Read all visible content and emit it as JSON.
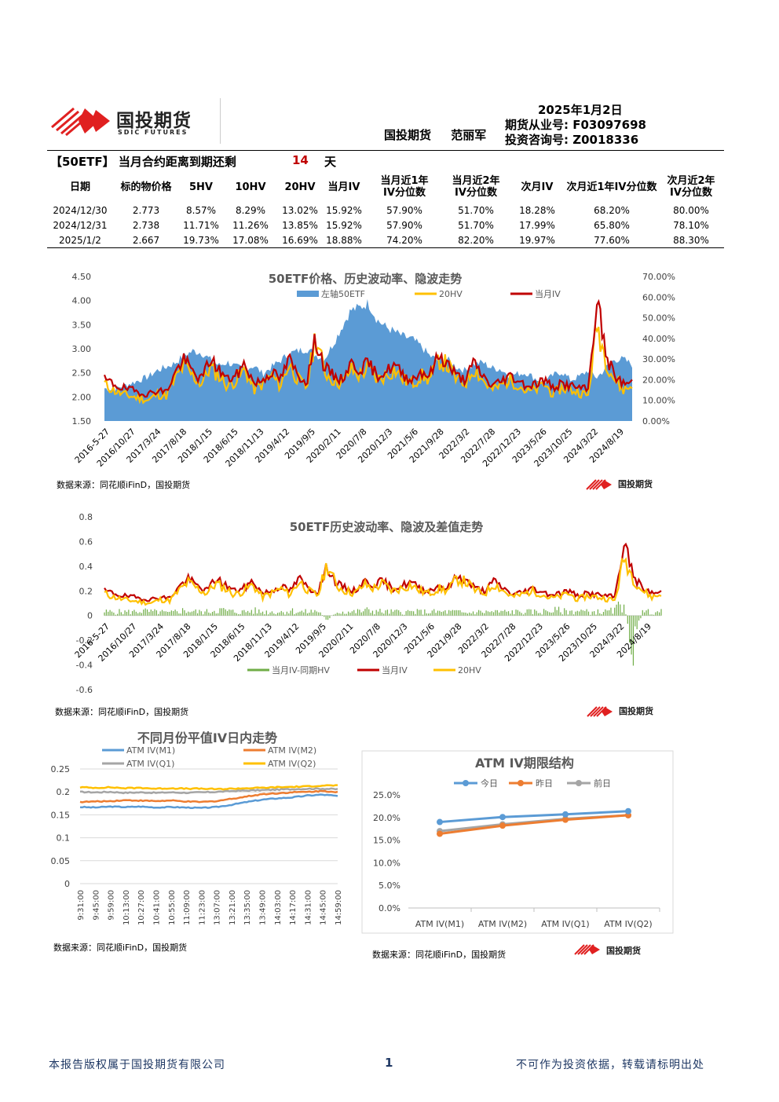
{
  "header": {
    "logo_cn": "国投期货",
    "logo_en": "SDIC FUTURES",
    "date": "2025年1月2日",
    "company": "国投期货",
    "analyst": "范丽军",
    "futures_license": "期货从业号: F03097698",
    "advisory_license": "投资咨询号: Z0018336"
  },
  "expiry": {
    "label": "【50ETF】 当月合约距离到期还剩",
    "days": "14",
    "unit": "天"
  },
  "table": {
    "headers": [
      "日期",
      "标的物价格",
      "5HV",
      "10HV",
      "20HV",
      "当月IV",
      "当月近1年IV分位数",
      "当月近2年IV分位数",
      "次月IV",
      "次月近1年IV分位数",
      "次月近2年IV分位数"
    ],
    "rows": [
      [
        "2024/12/30",
        "2.773",
        "8.57%",
        "8.29%",
        "13.02%",
        "15.92%",
        "57.90%",
        "51.70%",
        "18.28%",
        "68.20%",
        "80.00%"
      ],
      [
        "2024/12/31",
        "2.738",
        "11.71%",
        "11.26%",
        "13.85%",
        "15.92%",
        "57.90%",
        "51.70%",
        "17.99%",
        "65.80%",
        "78.10%"
      ],
      [
        "2025/1/2",
        "2.667",
        "19.73%",
        "17.08%",
        "16.69%",
        "18.88%",
        "74.20%",
        "82.20%",
        "19.97%",
        "77.60%",
        "88.30%"
      ]
    ]
  },
  "source_note": "数据来源：同花顺iFinD，国投期货",
  "footer": {
    "left": "本报告版权属于国投期货有限公司",
    "page": "1",
    "right": "不可作为投资依据，转载请标明出处"
  },
  "colors": {
    "etf": "#5b9bd5",
    "hv20": "#ffc000",
    "iv": "#c00000",
    "diff": "#70ad47",
    "m1": "#5b9bd5",
    "m2": "#ed7d31",
    "q1": "#a5a5a5",
    "q2": "#ffc000",
    "logo_red": "#e02020"
  },
  "chart_data": [
    {
      "type": "area",
      "title": "50ETF价格、历史波动率、隐波走势",
      "x_ticks": [
        "2016-5-27",
        "2016/10/27",
        "2017/3/24",
        "2017/8/18",
        "2018/1/15",
        "2018/6/15",
        "2018/11/13",
        "2019/4/12",
        "2019/9/5",
        "2020/2/11",
        "2020/7/8",
        "2020/12/3",
        "2021/5/6",
        "2021/9/28",
        "2022/3/2",
        "2022/7/28",
        "2022/12/23",
        "2023/5/26",
        "2023/10/25",
        "2024/3/22",
        "2024/8/19"
      ],
      "y_left_ticks": [
        "1.50",
        "2.00",
        "2.50",
        "3.00",
        "3.50",
        "4.00",
        "4.50"
      ],
      "y_right_ticks": [
        "0.00%",
        "10.00%",
        "20.00%",
        "30.00%",
        "40.00%",
        "50.00%",
        "60.00%",
        "70.00%"
      ],
      "ylim_left": [
        1.5,
        4.5
      ],
      "ylim_right": [
        0,
        0.7
      ],
      "legend": "top",
      "series": [
        {
          "name": "左轴50ETF",
          "axis": "left",
          "kind": "area",
          "values": [
            2.18,
            2.15,
            2.22,
            2.28,
            2.35,
            2.42,
            2.55,
            2.62,
            2.7,
            2.85,
            2.95,
            2.92,
            2.78,
            2.65,
            2.72,
            2.62,
            2.58,
            2.65,
            2.48,
            2.62,
            2.75,
            2.9,
            2.95,
            3.0,
            2.88,
            2.78,
            3.1,
            3.45,
            3.8,
            3.85,
            3.95,
            3.6,
            3.45,
            3.35,
            3.25,
            3.2,
            3.05,
            2.85,
            2.75,
            2.78,
            2.62,
            2.55,
            2.68,
            2.72,
            2.6,
            2.58,
            2.45,
            2.48,
            2.5,
            2.38,
            2.3,
            2.45,
            2.52,
            2.35,
            2.42,
            2.55,
            2.4,
            2.6,
            2.78,
            2.78,
            2.67
          ]
        },
        {
          "name": "20HV",
          "axis": "right",
          "kind": "line",
          "values": [
            0.18,
            0.15,
            0.13,
            0.12,
            0.11,
            0.1,
            0.13,
            0.12,
            0.2,
            0.27,
            0.22,
            0.18,
            0.26,
            0.22,
            0.17,
            0.2,
            0.25,
            0.15,
            0.18,
            0.22,
            0.17,
            0.28,
            0.2,
            0.16,
            0.42,
            0.24,
            0.2,
            0.18,
            0.25,
            0.22,
            0.26,
            0.2,
            0.22,
            0.25,
            0.2,
            0.18,
            0.22,
            0.2,
            0.3,
            0.27,
            0.2,
            0.18,
            0.26,
            0.2,
            0.15,
            0.17,
            0.2,
            0.18,
            0.14,
            0.15,
            0.18,
            0.13,
            0.16,
            0.15,
            0.14,
            0.12,
            0.47,
            0.3,
            0.2,
            0.15,
            0.17
          ]
        },
        {
          "name": "当月IV",
          "axis": "right",
          "kind": "line",
          "values": [
            0.2,
            0.18,
            0.16,
            0.15,
            0.14,
            0.13,
            0.15,
            0.14,
            0.23,
            0.3,
            0.24,
            0.2,
            0.3,
            0.25,
            0.2,
            0.22,
            0.28,
            0.18,
            0.2,
            0.24,
            0.2,
            0.3,
            0.22,
            0.19,
            0.4,
            0.26,
            0.22,
            0.2,
            0.28,
            0.25,
            0.28,
            0.22,
            0.24,
            0.27,
            0.22,
            0.2,
            0.24,
            0.22,
            0.32,
            0.28,
            0.22,
            0.2,
            0.28,
            0.22,
            0.17,
            0.19,
            0.22,
            0.2,
            0.17,
            0.18,
            0.2,
            0.16,
            0.18,
            0.17,
            0.16,
            0.15,
            0.6,
            0.32,
            0.22,
            0.18,
            0.19
          ]
        }
      ]
    },
    {
      "type": "line",
      "title": "50ETF历史波动率、隐波及差值走势",
      "x_ticks": [
        "2016-5-27",
        "2016/10/27",
        "2017/3/24",
        "2017/8/18",
        "2018/1/15",
        "2018/6/15",
        "2018/11/13",
        "2019/4/12",
        "2019/9/5",
        "2020/2/11",
        "2020/7/8",
        "2020/12/3",
        "2021/5/6",
        "2021/9/28",
        "2022/3/2",
        "2022/7/28",
        "2022/12/23",
        "2023/5/26",
        "2023/10/25",
        "2024/3/22",
        "2024/8/19"
      ],
      "y_ticks": [
        "-0.6",
        "-0.4",
        "-0.2",
        "0",
        "0.2",
        "0.4",
        "0.6",
        "0.8"
      ],
      "ylim": [
        -0.6,
        0.8
      ],
      "legend": "bottom",
      "series": [
        {
          "name": "当月IV-同期HV",
          "kind": "bar",
          "values": [
            0.03,
            0.03,
            0.03,
            0.03,
            0.04,
            0.03,
            0.03,
            0.02,
            0.04,
            0.04,
            0.03,
            0.03,
            0.05,
            0.04,
            0.03,
            0.03,
            0.04,
            0.03,
            0.03,
            0.03,
            0.04,
            0.03,
            0.03,
            0.04,
            -0.03,
            0.03,
            0.03,
            0.03,
            0.04,
            0.04,
            0.03,
            0.03,
            0.03,
            0.03,
            0.03,
            0.03,
            0.03,
            0.03,
            0.03,
            0.02,
            0.03,
            0.03,
            0.03,
            0.03,
            0.03,
            0.03,
            0.03,
            0.03,
            0.04,
            0.04,
            0.03,
            0.04,
            0.03,
            0.03,
            0.03,
            0.04,
            0.12,
            -0.3,
            0.03,
            0.03,
            0.03
          ]
        },
        {
          "name": "当月IV",
          "kind": "line",
          "values": [
            0.2,
            0.18,
            0.16,
            0.15,
            0.14,
            0.13,
            0.15,
            0.14,
            0.23,
            0.3,
            0.24,
            0.2,
            0.3,
            0.25,
            0.2,
            0.22,
            0.28,
            0.18,
            0.2,
            0.24,
            0.2,
            0.3,
            0.22,
            0.19,
            0.4,
            0.26,
            0.22,
            0.2,
            0.28,
            0.25,
            0.28,
            0.22,
            0.24,
            0.27,
            0.22,
            0.2,
            0.24,
            0.22,
            0.32,
            0.28,
            0.22,
            0.2,
            0.28,
            0.22,
            0.17,
            0.19,
            0.22,
            0.2,
            0.17,
            0.18,
            0.2,
            0.16,
            0.18,
            0.17,
            0.16,
            0.15,
            0.6,
            0.32,
            0.22,
            0.18,
            0.19
          ]
        },
        {
          "name": "20HV",
          "kind": "line",
          "values": [
            0.18,
            0.15,
            0.13,
            0.12,
            0.11,
            0.1,
            0.13,
            0.12,
            0.2,
            0.27,
            0.22,
            0.18,
            0.26,
            0.22,
            0.17,
            0.2,
            0.25,
            0.15,
            0.18,
            0.22,
            0.17,
            0.28,
            0.2,
            0.16,
            0.42,
            0.24,
            0.2,
            0.18,
            0.25,
            0.22,
            0.26,
            0.2,
            0.22,
            0.25,
            0.2,
            0.18,
            0.22,
            0.2,
            0.3,
            0.27,
            0.2,
            0.18,
            0.26,
            0.2,
            0.15,
            0.17,
            0.2,
            0.18,
            0.14,
            0.15,
            0.18,
            0.13,
            0.16,
            0.15,
            0.14,
            0.12,
            0.47,
            0.3,
            0.2,
            0.15,
            0.17
          ]
        }
      ]
    },
    {
      "type": "line",
      "title": "不同月份平值IV日内走势",
      "x_ticks": [
        "9:31:00",
        "9:45:00",
        "9:59:00",
        "10:13:00",
        "10:27:00",
        "10:41:00",
        "10:55:00",
        "11:09:00",
        "11:23:00",
        "13:07:00",
        "13:21:00",
        "13:35:00",
        "13:49:00",
        "14:03:00",
        "14:17:00",
        "14:31:00",
        "14:45:00",
        "14:59:00"
      ],
      "y_ticks": [
        "0",
        "0.05",
        "0.1",
        "0.15",
        "0.2",
        "0.25"
      ],
      "ylim": [
        0,
        0.25
      ],
      "legend": "top",
      "series": [
        {
          "name": "ATM IV(M1)",
          "values": [
            0.167,
            0.166,
            0.168,
            0.167,
            0.168,
            0.166,
            0.167,
            0.166,
            0.165,
            0.167,
            0.172,
            0.178,
            0.183,
            0.186,
            0.188,
            0.192,
            0.194,
            0.191
          ]
        },
        {
          "name": "ATM IV(M2)",
          "values": [
            0.178,
            0.179,
            0.18,
            0.182,
            0.181,
            0.18,
            0.181,
            0.179,
            0.178,
            0.18,
            0.185,
            0.19,
            0.195,
            0.197,
            0.199,
            0.2,
            0.202,
            0.2
          ]
        },
        {
          "name": "ATM IV(Q1)",
          "values": [
            0.2,
            0.199,
            0.2,
            0.198,
            0.199,
            0.198,
            0.199,
            0.198,
            0.199,
            0.2,
            0.202,
            0.203,
            0.204,
            0.205,
            0.206,
            0.207,
            0.207,
            0.206
          ]
        },
        {
          "name": "ATM IV(Q2)",
          "values": [
            0.21,
            0.209,
            0.21,
            0.208,
            0.209,
            0.207,
            0.208,
            0.207,
            0.207,
            0.206,
            0.207,
            0.208,
            0.209,
            0.21,
            0.211,
            0.212,
            0.214,
            0.214
          ]
        }
      ]
    },
    {
      "type": "line",
      "title": "ATM IV期限结构",
      "categories": [
        "ATM IV(M1)",
        "ATM IV(M2)",
        "ATM IV(Q1)",
        "ATM IV(Q2)"
      ],
      "y_ticks": [
        "0.0%",
        "5.0%",
        "10.0%",
        "15.0%",
        "20.0%",
        "25.0%"
      ],
      "ylim": [
        0,
        0.25
      ],
      "legend": "top",
      "series": [
        {
          "name": "今日",
          "values": [
            0.19,
            0.201,
            0.207,
            0.214
          ]
        },
        {
          "name": "昨日",
          "values": [
            0.164,
            0.182,
            0.195,
            0.205
          ]
        },
        {
          "name": "前日",
          "values": [
            0.17,
            0.185,
            0.197,
            0.205
          ]
        }
      ]
    }
  ]
}
